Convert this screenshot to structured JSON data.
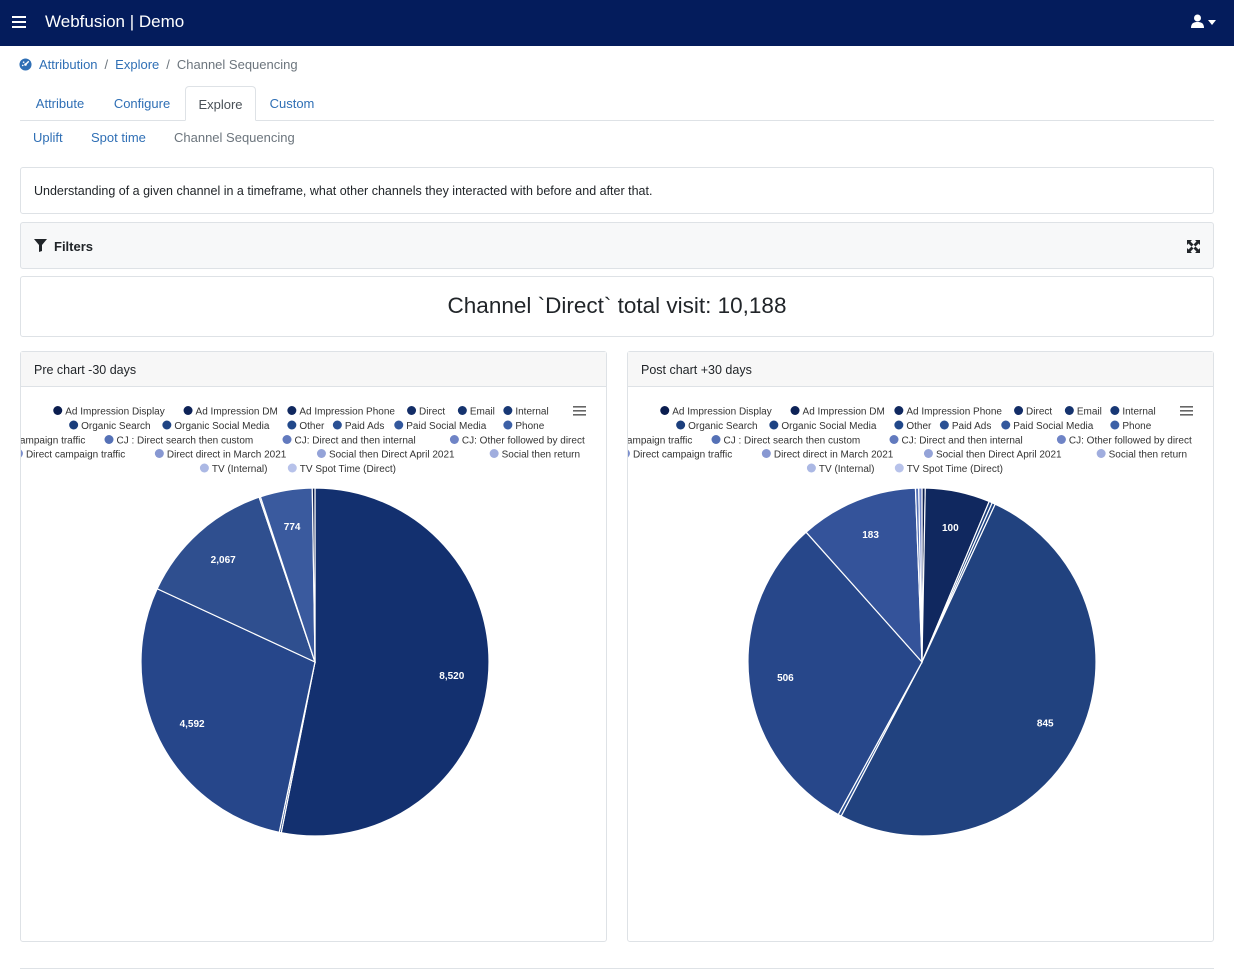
{
  "app": {
    "title": "Webfusion | Demo"
  },
  "icons": {
    "menu": "hamburger-icon",
    "user": "user-icon",
    "home": "dashboard-icon",
    "filter": "funnel-icon",
    "expand": "expand-icon",
    "chart_menu": "hamburger-icon"
  },
  "breadcrumb": {
    "items": [
      "Attribution",
      "Explore",
      "Channel Sequencing"
    ]
  },
  "tabs": [
    "Attribute",
    "Configure",
    "Explore",
    "Custom"
  ],
  "active_tab": "Explore",
  "subtabs": [
    "Uplift",
    "Spot time",
    "Channel Sequencing"
  ],
  "active_subtab": "Channel Sequencing",
  "description": "Understanding of a given channel in a timeframe, what other channels they interacted with before and after that.",
  "filters": {
    "label": "Filters"
  },
  "total": {
    "text": "Channel `Direct` total visit: 10,188"
  },
  "chart_data": [
    {
      "type": "pie",
      "title": "Pre chart -30 days",
      "legend_position": "top",
      "legend": [
        {
          "name": "Ad Impression Display",
          "color": "#0b1d4f"
        },
        {
          "name": "Ad Impression DM",
          "color": "#0d2257"
        },
        {
          "name": "Ad Impression Phone",
          "color": "#10285f"
        },
        {
          "name": "Direct",
          "color": "#132d67"
        },
        {
          "name": "Email",
          "color": "#15336e"
        },
        {
          "name": "Internal",
          "color": "#183875"
        },
        {
          "name": "Organic Search",
          "color": "#1b3e7c"
        },
        {
          "name": "Organic Social Media",
          "color": "#1e4383"
        },
        {
          "name": "Other",
          "color": "#21488a"
        },
        {
          "name": "Paid Ads",
          "color": "#2a5094"
        },
        {
          "name": "Paid Social Media",
          "color": "#33589d"
        },
        {
          "name": "Phone",
          "color": "#3c60a6"
        },
        {
          "name": "Campaign traffic",
          "color": "#4868ae"
        },
        {
          "name": "CJ : Direct search then custom",
          "color": "#5571b6"
        },
        {
          "name": "CJ: Direct and then internal",
          "color": "#627abe"
        },
        {
          "name": "CJ: Other followed by direct",
          "color": "#6f84c6"
        },
        {
          "name": "Direct campaign traffic",
          "color": "#7b8ecc"
        },
        {
          "name": "Direct direct in March 2021",
          "color": "#8898d2"
        },
        {
          "name": "Social then Direct April 2021",
          "color": "#94a3d8"
        },
        {
          "name": "Social then return",
          "color": "#a0adde"
        },
        {
          "name": "TV (Internal)",
          "color": "#abb8e4"
        },
        {
          "name": "TV Spot Time (Direct)",
          "color": "#b7c2ea"
        }
      ],
      "slices": [
        {
          "value": 8520,
          "label": "8,520",
          "color": "#13306f"
        },
        {
          "value": 30,
          "label": "",
          "color": "#1f4080"
        },
        {
          "value": 4592,
          "label": "4,592",
          "color": "#26468a"
        },
        {
          "value": 2067,
          "label": "2,067",
          "color": "#2f4f8f"
        },
        {
          "value": 20,
          "label": "",
          "color": "#3a5a9c"
        },
        {
          "value": 774,
          "label": "774",
          "color": "#3a5a9e"
        },
        {
          "value": 40,
          "label": "",
          "color": "#0b1d4f"
        }
      ]
    },
    {
      "type": "pie",
      "title": "Post chart +30 days",
      "legend_position": "top",
      "legend": [
        {
          "name": "Ad Impression Display",
          "color": "#0b1d4f"
        },
        {
          "name": "Ad Impression DM",
          "color": "#0d2257"
        },
        {
          "name": "Ad Impression Phone",
          "color": "#10285f"
        },
        {
          "name": "Direct",
          "color": "#132d67"
        },
        {
          "name": "Email",
          "color": "#15336e"
        },
        {
          "name": "Internal",
          "color": "#183875"
        },
        {
          "name": "Organic Search",
          "color": "#1b3e7c"
        },
        {
          "name": "Organic Social Media",
          "color": "#1e4383"
        },
        {
          "name": "Other",
          "color": "#21488a"
        },
        {
          "name": "Paid Ads",
          "color": "#2a5094"
        },
        {
          "name": "Paid Social Media",
          "color": "#33589d"
        },
        {
          "name": "Phone",
          "color": "#3c60a6"
        },
        {
          "name": "Campaign traffic",
          "color": "#4868ae"
        },
        {
          "name": "CJ : Direct search then custom",
          "color": "#5571b6"
        },
        {
          "name": "CJ: Direct and then internal",
          "color": "#627abe"
        },
        {
          "name": "CJ: Other followed by direct",
          "color": "#6f84c6"
        },
        {
          "name": "Direct campaign traffic",
          "color": "#7b8ecc"
        },
        {
          "name": "Direct direct in March 2021",
          "color": "#8898d2"
        },
        {
          "name": "Social then Direct April 2021",
          "color": "#94a3d8"
        },
        {
          "name": "Social then return",
          "color": "#a0adde"
        },
        {
          "name": "TV (Internal)",
          "color": "#abb8e4"
        },
        {
          "name": "TV Spot Time (Direct)",
          "color": "#b7c2ea"
        }
      ],
      "slices": [
        {
          "value": 5,
          "label": "",
          "color": "#0b1d4f"
        },
        {
          "value": 100,
          "label": "100",
          "color": "#10285f"
        },
        {
          "value": 5,
          "label": "",
          "color": "#1b3e7c"
        },
        {
          "value": 5,
          "label": "",
          "color": "#1e4383"
        },
        {
          "value": 845,
          "label": "845",
          "color": "#21427f"
        },
        {
          "value": 5,
          "label": "",
          "color": "#2a5094"
        },
        {
          "value": 506,
          "label": "506",
          "color": "#27478a"
        },
        {
          "value": 183,
          "label": "183",
          "color": "#34539a"
        },
        {
          "value": 5,
          "label": "",
          "color": "#5571b6"
        },
        {
          "value": 5,
          "label": "",
          "color": "#6f84c6"
        }
      ]
    }
  ]
}
